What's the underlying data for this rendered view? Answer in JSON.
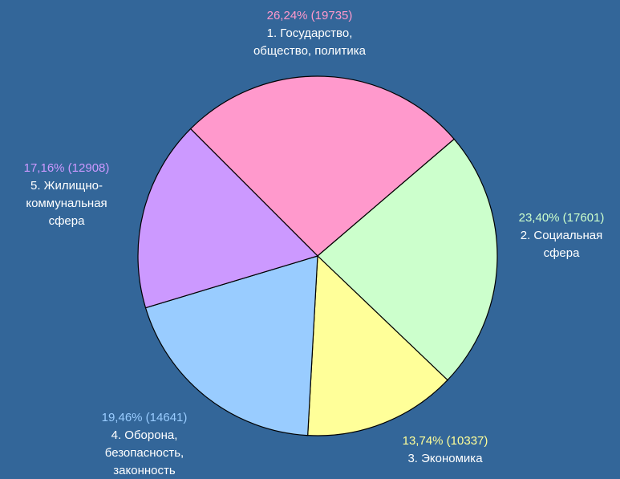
{
  "chart_data": {
    "type": "pie",
    "categories": [
      [
        "1. Государство,",
        "общество, политика"
      ],
      [
        "2. Социальная",
        "сфера"
      ],
      [
        "3. Экономика"
      ],
      [
        "4. Оборона,",
        "безопасность,",
        "законность"
      ],
      [
        "5. Жилищно-",
        "коммунальная",
        "сфера"
      ]
    ],
    "values": [
      19735,
      17601,
      10337,
      14641,
      12908
    ],
    "value_labels": [
      "26,24%  (19735)",
      "23,40%  (17601)",
      "13,74%  (10337)",
      "19,46%  (14641)",
      "17,16%  (12908)"
    ],
    "colors": [
      "#ff99cc",
      "#ccffcc",
      "#ffff99",
      "#99ccff",
      "#cc99ff"
    ]
  }
}
